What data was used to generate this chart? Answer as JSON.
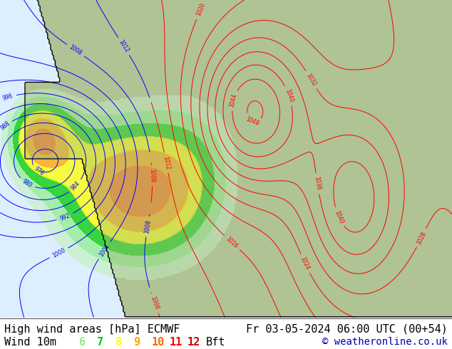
{
  "title_left": "High wind areas [hPa] ECMWF",
  "title_right": "Fr 03-05-2024 06:00 UTC (00+54)",
  "wind_label": "Wind 10m",
  "beaufort_numbers": [
    "6",
    "7",
    "8",
    "9",
    "10",
    "11",
    "12"
  ],
  "beaufort_colors": [
    "#90EE90",
    "#00CC00",
    "#FFFF00",
    "#FFA500",
    "#FF6600",
    "#FF0000",
    "#CC0000"
  ],
  "beaufort_suffix": "Bft",
  "copyright": "© weatheronline.co.uk",
  "bg_color": "#ffffff",
  "figsize": [
    6.34,
    4.9
  ],
  "dpi": 100,
  "bottom_text_color": "#000000",
  "font_size_bottom": 11,
  "font_size_copyright": 10,
  "ocean_color": "#ddeeff",
  "land_color": "#aabf88",
  "blue_contour_color": "blue",
  "red_contour_color": "red",
  "black_contour_color": "black",
  "copyright_color": "#0000aa"
}
